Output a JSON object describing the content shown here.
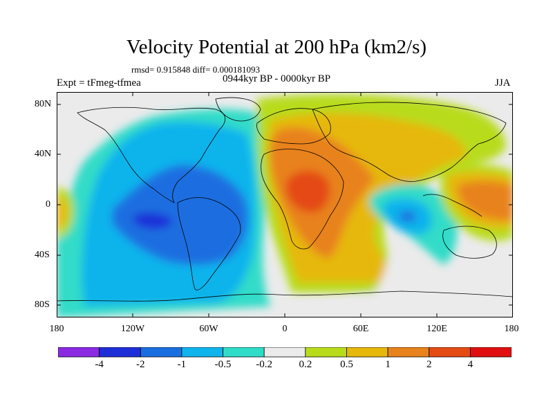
{
  "header": {
    "title": "Velocity Potential at 200 hPa (km2/s)",
    "stats": "rmsd= 0.915848 diff= 0.000181093",
    "experiment": "Expt = tFmeg-tfmea",
    "period": "0944kyr BP - 0000kyr BP",
    "season": "JJA"
  },
  "map": {
    "lat_labels": [
      "80N",
      "40N",
      "0",
      "40S",
      "80S"
    ],
    "lon_labels": [
      "180",
      "120W",
      "60W",
      "0",
      "60E",
      "120E",
      "180"
    ],
    "lon_range": [
      -180,
      180
    ],
    "lat_range": [
      -90,
      90
    ]
  },
  "colorbar": {
    "labels": [
      "-4",
      "-2",
      "-1",
      "-0.5",
      "-0.2",
      "0.2",
      "0.5",
      "1",
      "2",
      "4"
    ],
    "colors": [
      "#8a2be2",
      "#1f2fd8",
      "#1b6ee0",
      "#10b4ec",
      "#30dcc8",
      "#ebebeb",
      "#b8dc1c",
      "#e6b80c",
      "#e8821c",
      "#e44a14",
      "#e01010"
    ]
  }
}
